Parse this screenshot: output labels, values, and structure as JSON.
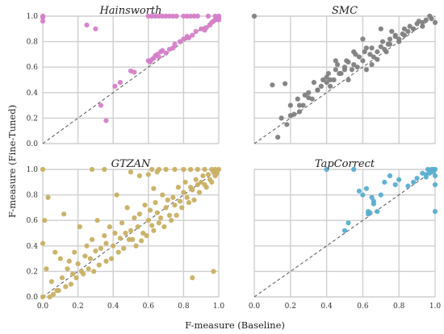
{
  "figure": {
    "xlabel": "F-measure (Baseline)",
    "ylabel": "F-measure (Fine-Tuned)"
  },
  "chart_data": [
    {
      "type": "scatter",
      "title": "Hainsworth",
      "color": "#d67ec8",
      "xlim": [
        0,
        1
      ],
      "ylim": [
        0,
        1
      ],
      "ticks": [
        "0.0",
        "0.2",
        "0.4",
        "0.6",
        "0.8",
        "1.0"
      ],
      "show_x_ticks": false,
      "show_y_ticks": true,
      "grid": true,
      "diagonal": "dashed y=x",
      "x": [
        0.0,
        0.0,
        0.0,
        0.25,
        0.3,
        0.33,
        0.36,
        0.41,
        0.44,
        0.5,
        0.52,
        0.6,
        0.61,
        0.62,
        0.63,
        0.64,
        0.65,
        0.66,
        0.67,
        0.68,
        0.7,
        0.72,
        0.74,
        0.75,
        0.78,
        0.8,
        0.82,
        0.83,
        0.85,
        0.87,
        0.9,
        0.92,
        0.93,
        0.95,
        0.96,
        0.97,
        0.98,
        0.99,
        1.0,
        1.0,
        1.0,
        0.98,
        0.94,
        0.6,
        0.62,
        0.64,
        0.66,
        0.68,
        0.7,
        0.72,
        0.74,
        0.76,
        0.8,
        0.82,
        0.84,
        0.86,
        0.88
      ],
      "y": [
        1.0,
        0.99,
        0.96,
        0.93,
        0.9,
        0.3,
        0.18,
        0.45,
        0.48,
        0.57,
        0.56,
        0.65,
        0.64,
        0.66,
        0.67,
        0.69,
        0.7,
        0.68,
        0.72,
        0.73,
        0.71,
        0.74,
        0.75,
        0.78,
        0.8,
        0.82,
        0.84,
        0.83,
        0.85,
        0.88,
        0.9,
        0.89,
        0.91,
        0.93,
        0.95,
        0.96,
        0.97,
        0.98,
        1.0,
        0.99,
        0.97,
        1.0,
        1.0,
        1.0,
        1.0,
        1.0,
        1.0,
        1.0,
        1.0,
        1.0,
        1.0,
        1.0,
        1.0,
        1.0,
        1.0,
        1.0,
        1.0
      ]
    },
    {
      "type": "scatter",
      "title": "SMC",
      "color": "#808080",
      "xlim": [
        0,
        1
      ],
      "ylim": [
        0,
        1
      ],
      "ticks": [
        "0.0",
        "0.2",
        "0.4",
        "0.6",
        "0.8",
        "1.0"
      ],
      "show_x_ticks": false,
      "show_y_ticks": false,
      "grid": true,
      "diagonal": "dashed y=x",
      "x": [
        0.0,
        0.1,
        0.13,
        0.15,
        0.17,
        0.18,
        0.2,
        0.22,
        0.24,
        0.25,
        0.27,
        0.28,
        0.3,
        0.32,
        0.33,
        0.35,
        0.37,
        0.38,
        0.4,
        0.41,
        0.42,
        0.44,
        0.45,
        0.46,
        0.48,
        0.5,
        0.51,
        0.52,
        0.54,
        0.55,
        0.56,
        0.58,
        0.6,
        0.61,
        0.62,
        0.64,
        0.65,
        0.66,
        0.68,
        0.7,
        0.71,
        0.72,
        0.74,
        0.75,
        0.76,
        0.78,
        0.8,
        0.82,
        0.83,
        0.85,
        0.86,
        0.88,
        0.9,
        0.91,
        0.93,
        0.95,
        0.97,
        0.98,
        1.0,
        0.55,
        0.6,
        0.45,
        0.4,
        0.7,
        0.75,
        0.3,
        0.5,
        0.65,
        0.8,
        0.35,
        0.25,
        0.2,
        0.62,
        0.57,
        0.47,
        0.52,
        0.42,
        0.68,
        0.73,
        0.78,
        0.83,
        0.88,
        0.93
      ],
      "y": [
        1.0,
        0.46,
        0.05,
        0.2,
        0.47,
        0.15,
        0.3,
        0.23,
        0.35,
        0.25,
        0.3,
        0.38,
        0.4,
        0.35,
        0.48,
        0.42,
        0.45,
        0.5,
        0.52,
        0.55,
        0.45,
        0.5,
        0.58,
        0.62,
        0.55,
        0.6,
        0.65,
        0.5,
        0.58,
        0.62,
        0.7,
        0.68,
        0.65,
        0.72,
        0.75,
        0.7,
        0.62,
        0.68,
        0.72,
        0.76,
        0.8,
        0.74,
        0.78,
        0.82,
        0.88,
        0.85,
        0.82,
        0.86,
        0.9,
        0.88,
        0.92,
        0.9,
        0.94,
        0.96,
        0.95,
        0.97,
        1.0,
        0.98,
        0.95,
        0.72,
        0.82,
        0.65,
        0.48,
        0.9,
        0.78,
        0.36,
        0.58,
        0.75,
        0.8,
        0.42,
        0.3,
        0.22,
        0.58,
        0.6,
        0.55,
        0.64,
        0.5,
        0.66,
        0.72,
        0.84,
        0.85,
        0.9,
        0.92
      ]
    },
    {
      "type": "scatter",
      "title": "GTZAN",
      "color": "#c8b062",
      "xlim": [
        0,
        1
      ],
      "ylim": [
        0,
        1
      ],
      "ticks": [
        "0.0",
        "0.2",
        "0.4",
        "0.6",
        "0.8",
        "1.0"
      ],
      "show_x_ticks": true,
      "show_y_ticks": true,
      "grid": true,
      "diagonal": "dashed y=x",
      "x": [
        0.0,
        0.0,
        0.0,
        0.01,
        0.02,
        0.03,
        0.05,
        0.07,
        0.08,
        0.1,
        0.11,
        0.12,
        0.14,
        0.15,
        0.17,
        0.18,
        0.2,
        0.21,
        0.22,
        0.24,
        0.25,
        0.27,
        0.28,
        0.3,
        0.31,
        0.33,
        0.35,
        0.36,
        0.38,
        0.4,
        0.41,
        0.42,
        0.44,
        0.45,
        0.47,
        0.48,
        0.5,
        0.51,
        0.52,
        0.54,
        0.55,
        0.57,
        0.58,
        0.6,
        0.61,
        0.62,
        0.64,
        0.65,
        0.67,
        0.68,
        0.7,
        0.71,
        0.72,
        0.74,
        0.75,
        0.77,
        0.78,
        0.8,
        0.81,
        0.82,
        0.84,
        0.85,
        0.87,
        0.88,
        0.9,
        0.91,
        0.92,
        0.94,
        0.95,
        0.97,
        0.98,
        1.0,
        0.99,
        0.96,
        0.93,
        0.89,
        0.86,
        0.83,
        0.79,
        0.76,
        0.73,
        0.69,
        0.66,
        0.63,
        0.59,
        0.56,
        0.53,
        0.49,
        0.46,
        0.43,
        0.39,
        0.36,
        0.32,
        0.29,
        0.26,
        0.23,
        0.19,
        0.16,
        0.13,
        0.09,
        0.06,
        0.04,
        0.28,
        0.35,
        0.62,
        0.66,
        0.7,
        0.75,
        0.8,
        0.84,
        0.88,
        0.92,
        0.96,
        0.98,
        0.5,
        0.55,
        0.6,
        0.65,
        0.97,
        0.85,
        0.63
      ],
      "y": [
        0.0,
        0.42,
        1.0,
        0.6,
        0.22,
        0.78,
        0.12,
        0.35,
        0.05,
        0.3,
        0.15,
        0.65,
        0.22,
        0.28,
        0.18,
        0.35,
        0.26,
        0.55,
        0.2,
        0.32,
        0.4,
        0.3,
        0.45,
        0.36,
        0.6,
        0.38,
        0.48,
        0.42,
        0.55,
        0.4,
        0.5,
        0.8,
        0.46,
        0.58,
        0.5,
        0.7,
        0.52,
        0.45,
        0.62,
        0.55,
        0.65,
        0.5,
        0.72,
        0.6,
        0.68,
        0.56,
        0.74,
        0.66,
        0.62,
        0.8,
        0.7,
        0.76,
        0.64,
        0.78,
        0.72,
        0.86,
        0.75,
        0.82,
        0.9,
        0.78,
        0.86,
        0.84,
        0.92,
        0.88,
        0.9,
        0.95,
        0.88,
        0.96,
        0.92,
        0.98,
        0.95,
        1.0,
        0.97,
        0.9,
        0.86,
        0.82,
        0.76,
        0.74,
        0.7,
        0.64,
        0.6,
        0.55,
        0.58,
        0.52,
        0.48,
        0.44,
        0.4,
        0.45,
        0.38,
        0.35,
        0.3,
        0.28,
        0.25,
        0.2,
        0.22,
        0.18,
        0.15,
        0.1,
        0.08,
        0.05,
        0.02,
        0.0,
        1.0,
        1.0,
        1.0,
        1.0,
        1.0,
        1.0,
        1.0,
        1.0,
        1.0,
        1.0,
        1.0,
        1.0,
        0.98,
        0.95,
        0.96,
        0.98,
        0.2,
        0.15,
        0.85
      ]
    },
    {
      "type": "scatter",
      "title": "TapCorrect",
      "color": "#5aaed0",
      "xlim": [
        0,
        1
      ],
      "ylim": [
        0,
        1
      ],
      "ticks": [
        "0.0",
        "0.2",
        "0.4",
        "0.6",
        "0.8",
        "1.0"
      ],
      "show_x_ticks": true,
      "show_y_ticks": false,
      "grid": true,
      "diagonal": "dashed y=x",
      "x": [
        0.4,
        0.5,
        0.52,
        0.55,
        0.58,
        0.6,
        0.62,
        0.63,
        0.64,
        0.65,
        0.66,
        0.68,
        0.7,
        0.72,
        0.75,
        0.78,
        0.8,
        0.85,
        0.88,
        0.9,
        0.93,
        0.95,
        0.96,
        0.97,
        0.98,
        0.99,
        1.0,
        1.0,
        1.0,
        1.0,
        0.97,
        0.95,
        0.99,
        0.63,
        0.66
      ],
      "y": [
        1.0,
        0.52,
        0.58,
        1.0,
        0.83,
        0.8,
        0.85,
        0.67,
        0.66,
        0.78,
        0.73,
        0.67,
        0.8,
        0.9,
        0.95,
        0.88,
        0.92,
        0.87,
        0.9,
        0.93,
        0.97,
        0.96,
        1.0,
        0.99,
        1.0,
        1.0,
        0.67,
        0.88,
        0.95,
        1.0,
        0.97,
        0.94,
        0.98,
        0.65,
        0.75
      ]
    }
  ]
}
